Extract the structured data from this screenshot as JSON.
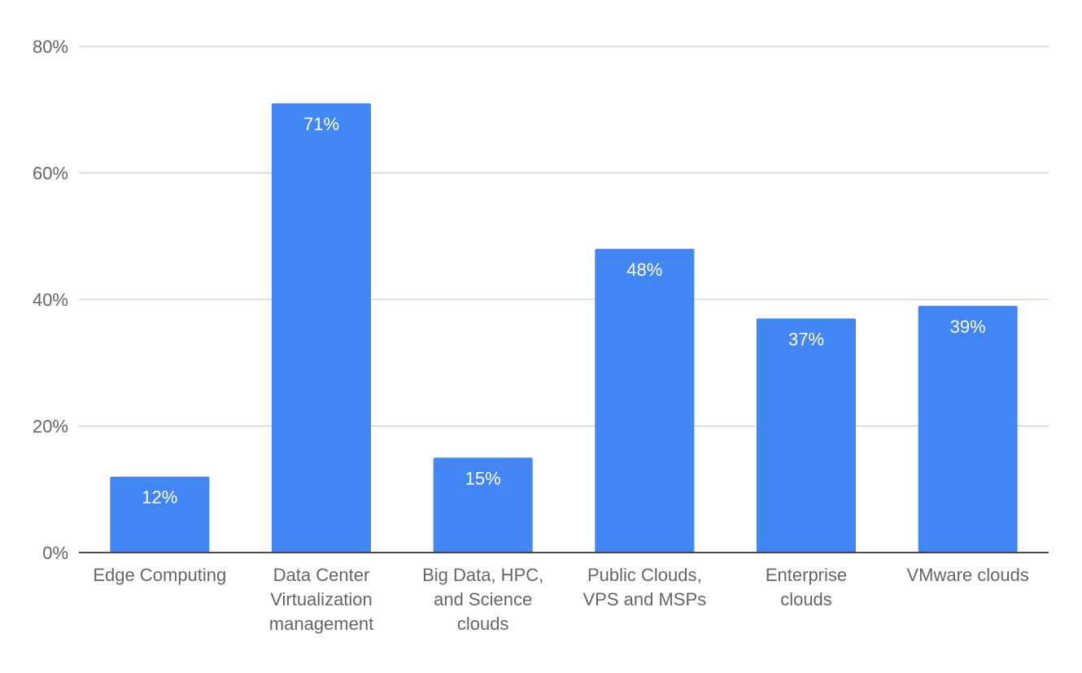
{
  "chart_data": {
    "type": "bar",
    "categories": [
      [
        "Edge Computing"
      ],
      [
        "Data Center",
        "Virtualization",
        "management"
      ],
      [
        "Big Data, HPC,",
        "and Science",
        "clouds"
      ],
      [
        "Public Clouds,",
        "VPS and MSPs"
      ],
      [
        "Enterprise",
        "clouds"
      ],
      [
        "VMware clouds"
      ]
    ],
    "values": [
      12,
      71,
      15,
      48,
      37,
      39
    ],
    "data_labels": [
      "12%",
      "71%",
      "15%",
      "48%",
      "37%",
      "39%"
    ],
    "ylim": [
      0,
      80
    ],
    "yticks": [
      0,
      20,
      40,
      60,
      80
    ],
    "ytick_labels": [
      "0%",
      "20%",
      "40%",
      "60%",
      "80%"
    ],
    "title": "",
    "xlabel": "",
    "ylabel": "",
    "grid": true,
    "legend": "none",
    "colors": {
      "bar": "#4285f4",
      "grid": "#cccccc",
      "axis": "#333333",
      "label": "#666666",
      "data_label": "#ffffff"
    }
  }
}
